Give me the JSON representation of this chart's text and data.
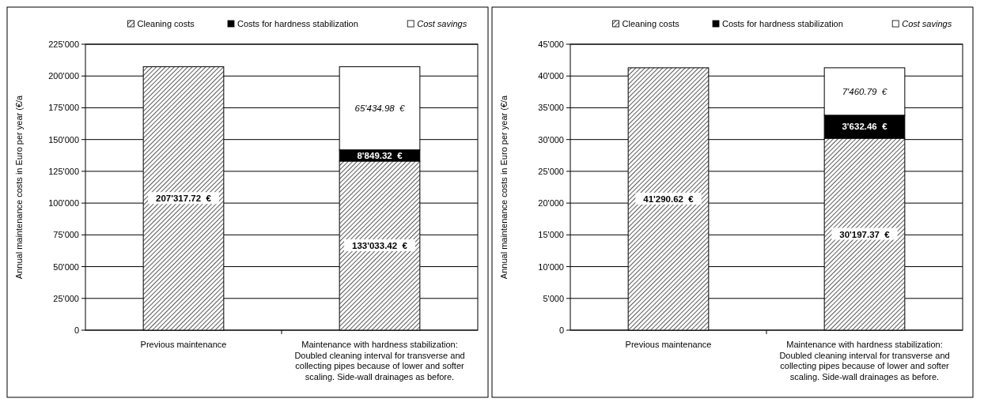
{
  "chart_data": [
    {
      "type": "bar",
      "stacked": true,
      "ylabel": "Annual maintenance costs in Euro per year (€/a",
      "categories": [
        "Previous maintenance",
        "Maintenance with hardness stabilization: Doubled cleaning interval for transverse and collecting pipes because of lower and softer scaling. Side-wall drainages as before."
      ],
      "ylim": [
        0,
        225000
      ],
      "yticks": [
        {
          "value": 0,
          "label": "0"
        },
        {
          "value": 25000,
          "label": "25'000"
        },
        {
          "value": 50000,
          "label": "50'000"
        },
        {
          "value": 75000,
          "label": "75'000"
        },
        {
          "value": 100000,
          "label": "100'000"
        },
        {
          "value": 125000,
          "label": "125'000"
        },
        {
          "value": 150000,
          "label": "150'000"
        },
        {
          "value": 175000,
          "label": "175'000"
        },
        {
          "value": 200000,
          "label": "200'000"
        },
        {
          "value": 225000,
          "label": "225'000"
        }
      ],
      "grid": "y",
      "legend": "top",
      "series": [
        {
          "name": "Cleaning costs",
          "color": "#000000",
          "values": [
            207317.72,
            133033.42
          ],
          "value_labels": [
            "207'317.72  €",
            "133'033.42  €"
          ]
        },
        {
          "name": "Costs for hardness stabilization",
          "color": "#000000",
          "values": [
            null,
            8849.32
          ],
          "value_labels": [
            null,
            "8'849.32  €"
          ]
        },
        {
          "name": "Cost savings",
          "color": "#ffffff",
          "values": [
            null,
            65434.98
          ],
          "value_labels": [
            null,
            "65'434.98  €"
          ]
        }
      ]
    },
    {
      "type": "bar",
      "stacked": true,
      "ylabel": "Annual maintenance costs in Euro per year (€/a",
      "categories": [
        "Previous maintenance",
        "Maintenance with hardness stabilization: Doubled cleaning interval for transverse and collecting pipes because of lower and softer scaling. Side-wall drainages as before."
      ],
      "ylim": [
        0,
        45000
      ],
      "yticks": [
        {
          "value": 0,
          "label": "0"
        },
        {
          "value": 5000,
          "label": "5'000"
        },
        {
          "value": 10000,
          "label": "10'000"
        },
        {
          "value": 15000,
          "label": "15'000"
        },
        {
          "value": 20000,
          "label": "20'000"
        },
        {
          "value": 25000,
          "label": "25'000"
        },
        {
          "value": 30000,
          "label": "30'000"
        },
        {
          "value": 35000,
          "label": "35'000"
        },
        {
          "value": 40000,
          "label": "40'000"
        },
        {
          "value": 45000,
          "label": "45'000"
        }
      ],
      "grid": "y",
      "legend": "top",
      "series": [
        {
          "name": "Cleaning costs",
          "color": "#000000",
          "values": [
            41290.62,
            30197.37
          ],
          "value_labels": [
            "41'290.62  €",
            "30'197.37  €"
          ]
        },
        {
          "name": "Costs for hardness stabilization",
          "color": "#000000",
          "values": [
            null,
            3632.46
          ],
          "value_labels": [
            null,
            "3'632.46  €"
          ]
        },
        {
          "name": "Cost savings",
          "color": "#ffffff",
          "values": [
            null,
            7460.79
          ],
          "value_labels": [
            null,
            "7'460.79  €"
          ]
        }
      ]
    }
  ]
}
